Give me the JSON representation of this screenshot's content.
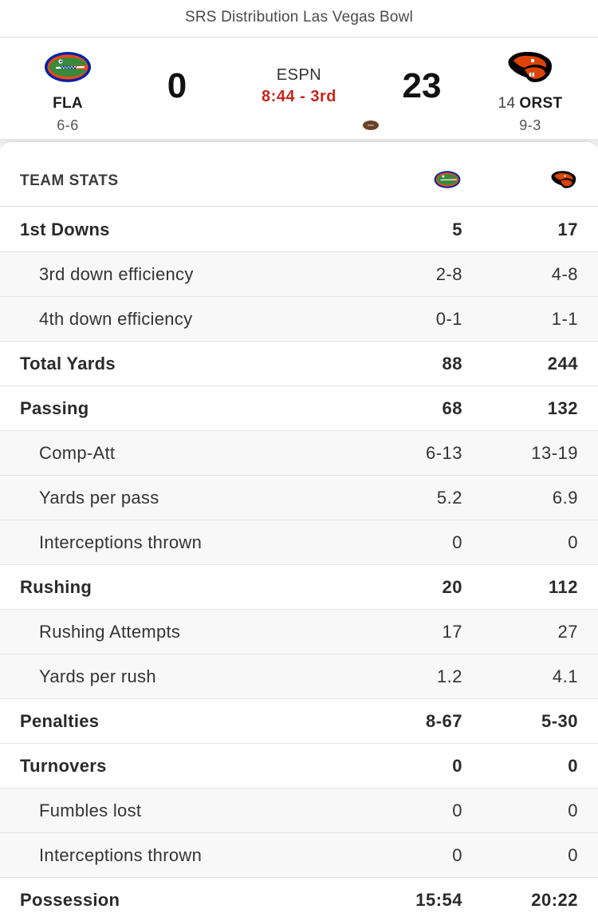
{
  "game": {
    "title": "SRS Distribution Las Vegas Bowl"
  },
  "away": {
    "abbr": "FLA",
    "record": "6-6",
    "score": "0",
    "rank": "",
    "logo_icon": "florida-gator-logo-icon",
    "colors": {
      "primary": "#0021a5",
      "secondary": "#fa4616",
      "green": "#3a8a3c"
    }
  },
  "home": {
    "abbr": "ORST",
    "record": "9-3",
    "score": "23",
    "rank": "14",
    "logo_icon": "oregon-state-beaver-logo-icon",
    "colors": {
      "primary": "#dc4405",
      "secondary": "#000000"
    }
  },
  "status": {
    "network": "ESPN",
    "clock": "8:44 - 3rd",
    "clock_color": "#c8251b",
    "possession": "home"
  },
  "stats": {
    "heading": "TEAM STATS",
    "rows": [
      {
        "label": "1st Downs",
        "away": "5",
        "home": "17",
        "sub": false
      },
      {
        "label": "3rd down efficiency",
        "away": "2-8",
        "home": "4-8",
        "sub": true
      },
      {
        "label": "4th down efficiency",
        "away": "0-1",
        "home": "1-1",
        "sub": true
      },
      {
        "label": "Total Yards",
        "away": "88",
        "home": "244",
        "sub": false
      },
      {
        "label": "Passing",
        "away": "68",
        "home": "132",
        "sub": false
      },
      {
        "label": "Comp-Att",
        "away": "6-13",
        "home": "13-19",
        "sub": true
      },
      {
        "label": "Yards per pass",
        "away": "5.2",
        "home": "6.9",
        "sub": true
      },
      {
        "label": "Interceptions thrown",
        "away": "0",
        "home": "0",
        "sub": true
      },
      {
        "label": "Rushing",
        "away": "20",
        "home": "112",
        "sub": false
      },
      {
        "label": "Rushing Attempts",
        "away": "17",
        "home": "27",
        "sub": true
      },
      {
        "label": "Yards per rush",
        "away": "1.2",
        "home": "4.1",
        "sub": true
      },
      {
        "label": "Penalties",
        "away": "8-67",
        "home": "5-30",
        "sub": false
      },
      {
        "label": "Turnovers",
        "away": "0",
        "home": "0",
        "sub": false
      },
      {
        "label": "Fumbles lost",
        "away": "0",
        "home": "0",
        "sub": true
      },
      {
        "label": "Interceptions thrown",
        "away": "0",
        "home": "0",
        "sub": true
      },
      {
        "label": "Possession",
        "away": "15:54",
        "home": "20:22",
        "sub": false
      }
    ]
  }
}
